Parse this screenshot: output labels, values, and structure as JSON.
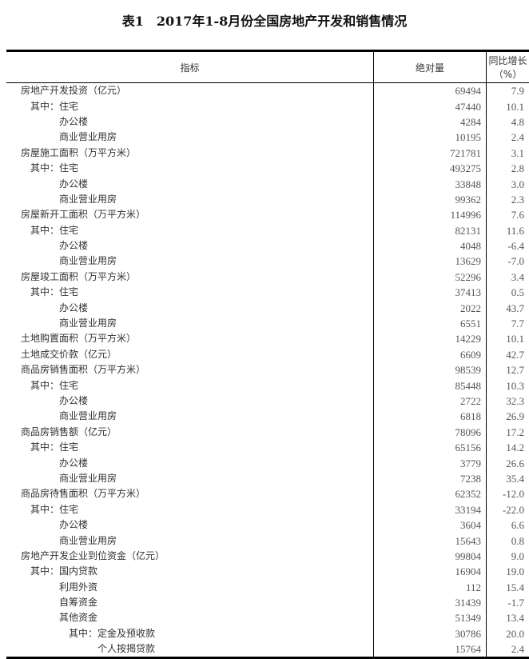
{
  "title": "表1　2017年1-8月份全国房地产开发和销售情况",
  "headers": [
    "指标",
    "绝对量",
    "同比增长（%）"
  ],
  "rows": [
    {
      "label": "房地产开发投资（亿元）",
      "level": 0,
      "value": "69494",
      "growth": "7.9"
    },
    {
      "label": "其中：住宅",
      "level": 1,
      "value": "47440",
      "growth": "10.1"
    },
    {
      "label": "办公楼",
      "level": 2,
      "value": "4284",
      "growth": "4.8"
    },
    {
      "label": "商业营业用房",
      "level": 2,
      "value": "10195",
      "growth": "2.4"
    },
    {
      "label": "房屋施工面积（万平方米）",
      "level": 0,
      "value": "721781",
      "growth": "3.1"
    },
    {
      "label": "其中：住宅",
      "level": 1,
      "value": "493275",
      "growth": "2.8"
    },
    {
      "label": "办公楼",
      "level": 2,
      "value": "33848",
      "growth": "3.0"
    },
    {
      "label": "商业营业用房",
      "level": 2,
      "value": "99362",
      "growth": "2.3"
    },
    {
      "label": "房屋新开工面积（万平方米）",
      "level": 0,
      "value": "114996",
      "growth": "7.6"
    },
    {
      "label": "其中：住宅",
      "level": 1,
      "value": "82131",
      "growth": "11.6"
    },
    {
      "label": "办公楼",
      "level": 2,
      "value": "4048",
      "growth": "-6.4"
    },
    {
      "label": "商业营业用房",
      "level": 2,
      "value": "13629",
      "growth": "-7.0"
    },
    {
      "label": "房屋竣工面积（万平方米）",
      "level": 0,
      "value": "52296",
      "growth": "3.4"
    },
    {
      "label": "其中：住宅",
      "level": 1,
      "value": "37413",
      "growth": "0.5"
    },
    {
      "label": "办公楼",
      "level": 2,
      "value": "2022",
      "growth": "43.7"
    },
    {
      "label": "商业营业用房",
      "level": 2,
      "value": "6551",
      "growth": "7.7"
    },
    {
      "label": "土地购置面积（万平方米）",
      "level": 0,
      "value": "14229",
      "growth": "10.1"
    },
    {
      "label": "土地成交价款（亿元）",
      "level": 0,
      "value": "6609",
      "growth": "42.7"
    },
    {
      "label": "商品房销售面积（万平方米）",
      "level": 0,
      "value": "98539",
      "growth": "12.7"
    },
    {
      "label": "其中：住宅",
      "level": 1,
      "value": "85448",
      "growth": "10.3"
    },
    {
      "label": "办公楼",
      "level": 2,
      "value": "2722",
      "growth": "32.3"
    },
    {
      "label": "商业营业用房",
      "level": 2,
      "value": "6818",
      "growth": "26.9"
    },
    {
      "label": "商品房销售额（亿元）",
      "level": 0,
      "value": "78096",
      "growth": "17.2"
    },
    {
      "label": "其中：住宅",
      "level": 1,
      "value": "65156",
      "growth": "14.2"
    },
    {
      "label": "办公楼",
      "level": 2,
      "value": "3779",
      "growth": "26.6"
    },
    {
      "label": "商业营业用房",
      "level": 2,
      "value": "7238",
      "growth": "35.4"
    },
    {
      "label": "商品房待售面积（万平方米）",
      "level": 0,
      "value": "62352",
      "growth": "-12.0"
    },
    {
      "label": "其中：住宅",
      "level": 1,
      "value": "33194",
      "growth": "-22.0"
    },
    {
      "label": "办公楼",
      "level": 2,
      "value": "3604",
      "growth": "6.6"
    },
    {
      "label": "商业营业用房",
      "level": 2,
      "value": "15643",
      "growth": "0.8"
    },
    {
      "label": "房地产开发企业到位资金（亿元）",
      "level": 0,
      "value": "99804",
      "growth": "9.0"
    },
    {
      "label": "其中：国内贷款",
      "level": 1,
      "value": "16904",
      "growth": "19.0"
    },
    {
      "label": "利用外资",
      "level": 2,
      "value": "112",
      "growth": "15.4"
    },
    {
      "label": "自筹资金",
      "level": 2,
      "value": "31439",
      "growth": "-1.7"
    },
    {
      "label": "其他资金",
      "level": 2,
      "value": "51349",
      "growth": "13.4"
    },
    {
      "label": "其中：定金及预收款",
      "level": 3,
      "value": "30786",
      "growth": "20.0"
    },
    {
      "label": "个人按揭贷款",
      "level": 4,
      "value": "15764",
      "growth": "2.4"
    }
  ]
}
